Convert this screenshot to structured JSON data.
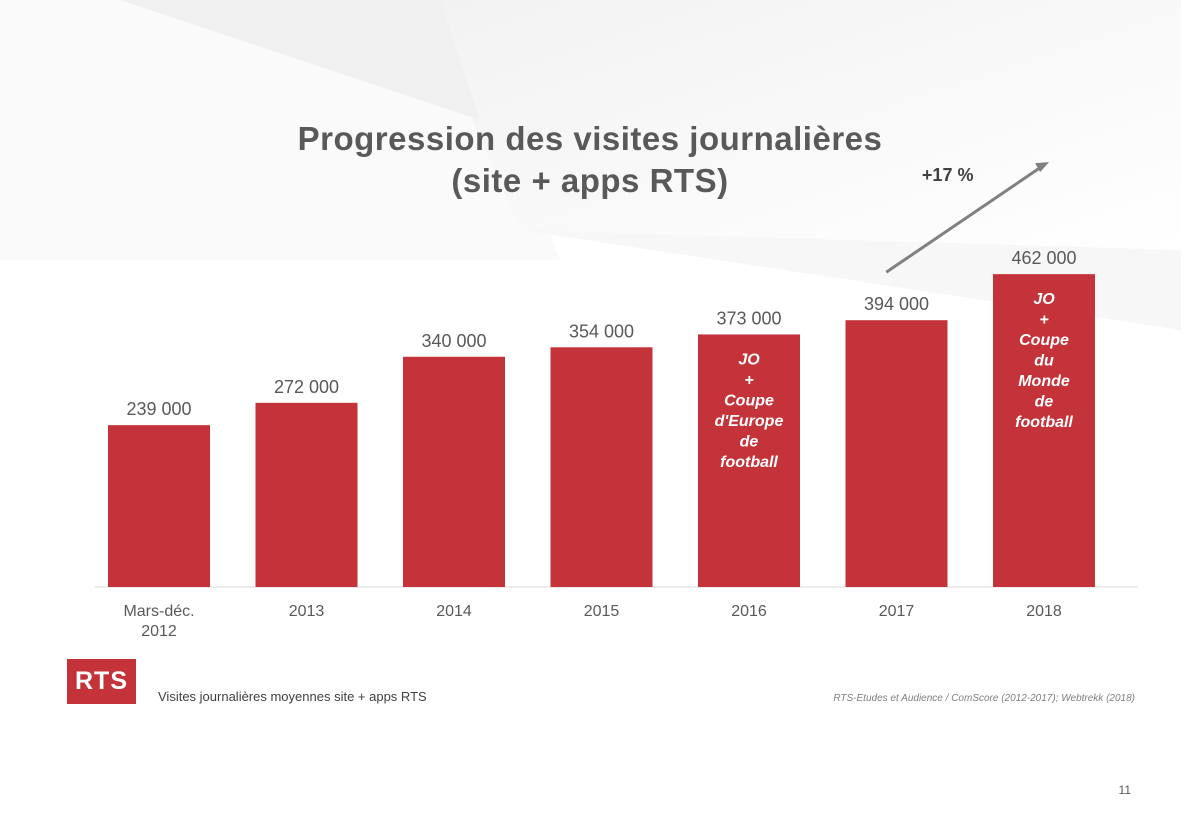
{
  "page": {
    "title_line1": "Progression des visites journalières",
    "title_line2": "(site + apps RTS)",
    "logo_text": "RTS",
    "caption": "Visites journalières moyennes site + apps RTS",
    "source": "RTS-Etudes et Audience / ComScore (2012-2017); Webtrekk (2018)",
    "page_number": "11",
    "growth_label": "+17 %"
  },
  "colors": {
    "bar": "#c4323a",
    "text": "#595959",
    "arrow": "#808080"
  },
  "chart_data": {
    "type": "bar",
    "title": "Progression des visites journalières (site + apps RTS)",
    "xlabel": "",
    "ylabel": "",
    "categories": [
      [
        "Mars-déc.",
        "2012"
      ],
      [
        "2013"
      ],
      [
        "2014"
      ],
      [
        "2015"
      ],
      [
        "2016"
      ],
      [
        "2017"
      ],
      [
        "2018"
      ]
    ],
    "values": [
      239000,
      272000,
      340000,
      354000,
      373000,
      394000,
      462000
    ],
    "value_labels": [
      "239 000",
      "272 000",
      "340 000",
      "354 000",
      "373 000",
      "394 000",
      "462 000"
    ],
    "bar_notes": [
      [],
      [],
      [],
      [],
      [
        "JO",
        "+",
        "Coupe",
        "d'Europe",
        "de",
        "football"
      ],
      [],
      [
        "JO",
        "+",
        "Coupe",
        "du",
        "Monde",
        "de",
        "football"
      ]
    ],
    "annotation": {
      "text": "+17 %",
      "from": "2017",
      "to": "2018"
    },
    "ylim": [
      0,
      500000
    ],
    "grid": false,
    "legend": "none"
  }
}
